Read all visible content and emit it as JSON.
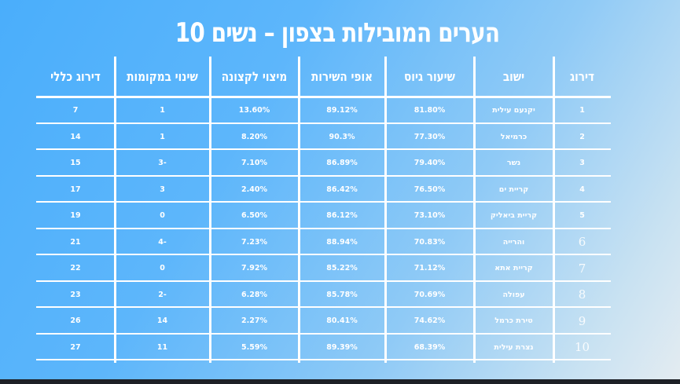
{
  "title": "10 הערים המובילות בצפון – נשים",
  "table": {
    "headers": [
      "דירוג",
      "ישוב",
      "שיעור גיוס",
      "אופי השירות",
      "מיצוי לקצונה",
      "שינוי במקומות",
      "דירוג כללי"
    ],
    "rows": [
      {
        "rank": "1",
        "city": "יקנעם עילית",
        "recruit": "81.80%",
        "service": "89.12%",
        "officer": "13.60%",
        "change": "1",
        "overall": "7"
      },
      {
        "rank": "2",
        "city": "כרמיאל",
        "recruit": "77.30%",
        "service": "90.3%",
        "officer": "8.20%",
        "change": "1",
        "overall": "14"
      },
      {
        "rank": "3",
        "city": "נשר",
        "recruit": "79.40%",
        "service": "86.89%",
        "officer": "7.10%",
        "change": "3-",
        "overall": "15"
      },
      {
        "rank": "4",
        "city": "קריית ים",
        "recruit": "76.50%",
        "service": "86.42%",
        "officer": "2.40%",
        "change": "3",
        "overall": "17"
      },
      {
        "rank": "5",
        "city": "קריית ביאליק",
        "recruit": "73.10%",
        "service": "86.12%",
        "officer": "6.50%",
        "change": "0",
        "overall": "19"
      },
      {
        "rank": "6",
        "city": "והרייה",
        "recruit": "70.83%",
        "service": "88.94%",
        "officer": "7.23%",
        "change": "4-",
        "overall": "21"
      },
      {
        "rank": "7",
        "city": "קריית אתא",
        "recruit": "71.12%",
        "service": "85.22%",
        "officer": "7.92%",
        "change": "0",
        "overall": "22"
      },
      {
        "rank": "8",
        "city": "עפולה",
        "recruit": "70.69%",
        "service": "85.78%",
        "officer": "6.28%",
        "change": "2-",
        "overall": "23"
      },
      {
        "rank": "9",
        "city": "טירת כרמל",
        "recruit": "74.62%",
        "service": "80.41%",
        "officer": "2.27%",
        "change": "14",
        "overall": "26"
      },
      {
        "rank": "10",
        "city": "נצרת עילית",
        "recruit": "68.39%",
        "service": "89.39%",
        "officer": "5.59%",
        "change": "11",
        "overall": "27"
      }
    ]
  },
  "colors": {
    "background_start": "#4aaefb",
    "background_end": "#e4ecf1",
    "text": "#ffffff",
    "grid": "#ffffff"
  }
}
